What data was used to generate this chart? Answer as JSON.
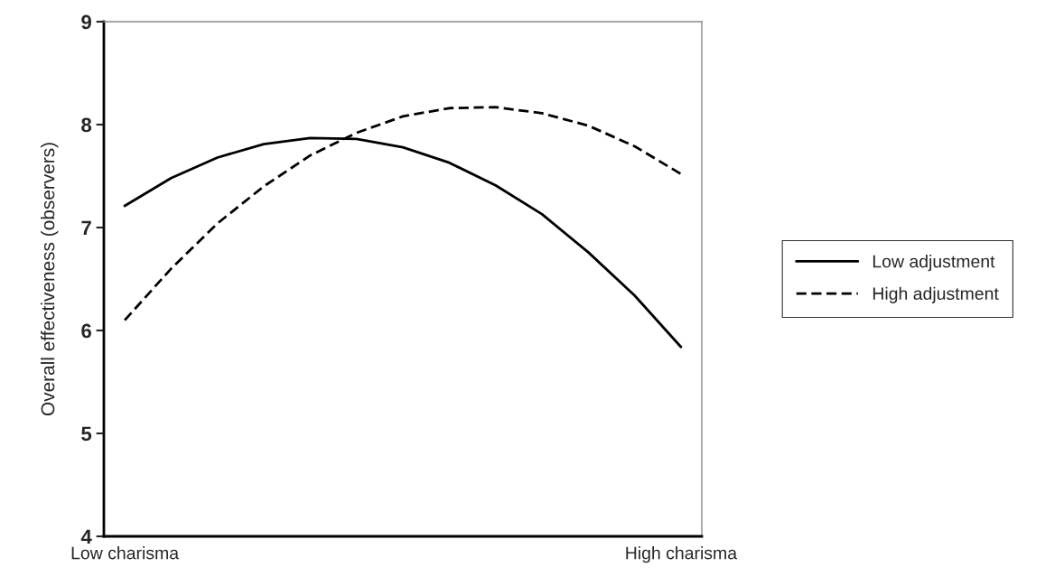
{
  "chart_data": {
    "type": "line",
    "ylabel": "Overall effectiveness (observers)",
    "categories": [
      "Low charisma",
      null,
      null,
      null,
      null,
      null,
      null,
      null,
      null,
      null,
      null,
      null,
      "High charisma"
    ],
    "series": [
      {
        "name": "Low adjustment",
        "color": "#000000",
        "line_style": "solid",
        "values": [
          7.21,
          7.48,
          7.68,
          7.81,
          7.87,
          7.86,
          7.78,
          7.63,
          7.41,
          7.13,
          6.76,
          6.34,
          5.84
        ]
      },
      {
        "name": "High adjustment",
        "color": "#000000",
        "line_style": "dashed",
        "values": [
          6.1,
          6.6,
          7.04,
          7.4,
          7.7,
          7.92,
          8.08,
          8.16,
          8.17,
          8.11,
          7.99,
          7.79,
          7.52
        ]
      }
    ],
    "ylim": [
      4,
      9
    ],
    "yticks": [
      4,
      5,
      6,
      7,
      8,
      9
    ],
    "grid": false,
    "legend": "right",
    "marker": "none"
  }
}
